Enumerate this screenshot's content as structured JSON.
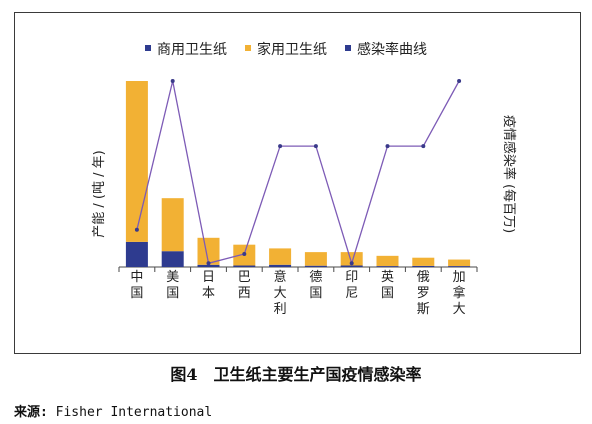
{
  "chart_data": {
    "type": "bar",
    "stacked": true,
    "categories": [
      "中国",
      "美国",
      "日本",
      "巴西",
      "意大利",
      "德国",
      "印尼",
      "英国",
      "俄罗斯",
      "加拿大"
    ],
    "series": [
      {
        "name": "商用卫生纸",
        "kind": "bar",
        "axis": "left",
        "color": "#2e3b8f",
        "values": [
          13.5,
          8.5,
          1.2,
          0.8,
          1.2,
          0.7,
          0.8,
          0.5,
          0.6,
          0.5
        ]
      },
      {
        "name": "家用卫生纸",
        "kind": "bar",
        "axis": "left",
        "color": "#f2b134",
        "values": [
          86.5,
          28.5,
          14.5,
          11.2,
          8.8,
          7.3,
          7.2,
          5.5,
          4.4,
          3.5
        ]
      },
      {
        "name": "感染率曲线",
        "kind": "line",
        "axis": "right",
        "color": "#7d5bb6",
        "values": [
          0.2,
          1.0,
          0.02,
          0.07,
          0.65,
          0.65,
          0.02,
          0.65,
          0.65,
          1.0
        ]
      }
    ],
    "ylabel": "产能 / (吨 / 年)",
    "ylabel_right": "疫情感染率 (每百万)",
    "ylim": [
      0,
      100
    ],
    "ylim_right": [
      0,
      1.0
    ],
    "grid": false,
    "legend_position": "top"
  },
  "caption": "图4　卫生纸主要生产国疫情感染率",
  "source": {
    "label": "来源:",
    "text": " Fisher International"
  }
}
